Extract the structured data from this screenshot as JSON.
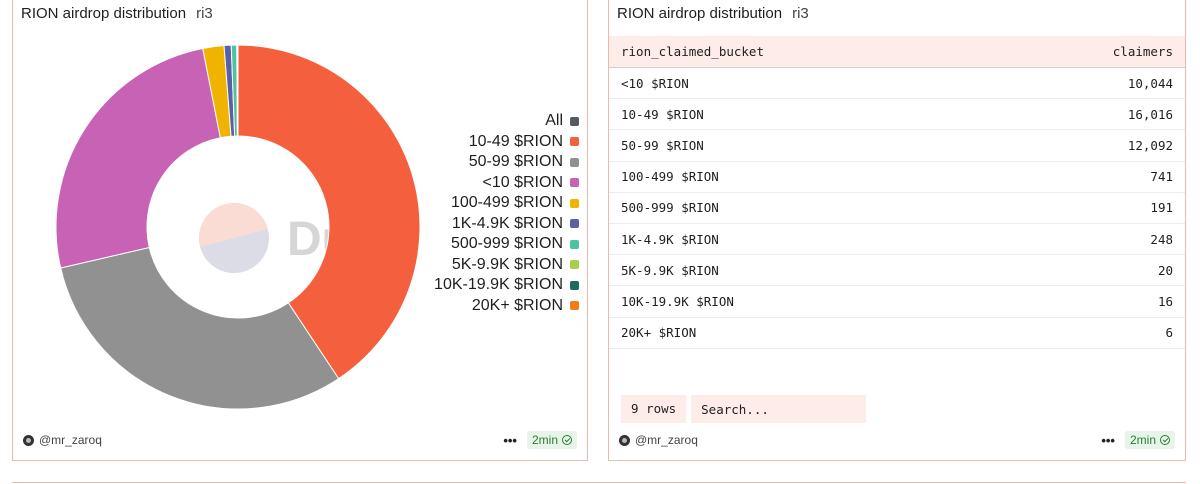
{
  "left_panel": {
    "title": "RION airdrop distribution",
    "subtitle": "ri3",
    "user": "@mr_zaroq",
    "refresh": "2min",
    "watermark": "Dune"
  },
  "right_panel": {
    "title": "RION airdrop distribution",
    "subtitle": "ri3",
    "user": "@mr_zaroq",
    "refresh": "2min",
    "columns": [
      "rion_claimed_bucket",
      "claimers"
    ],
    "rows": [
      {
        "bucket": "<10 $RION",
        "claimers": "10,044"
      },
      {
        "bucket": "10-49 $RION",
        "claimers": "16,016"
      },
      {
        "bucket": "50-99 $RION",
        "claimers": "12,092"
      },
      {
        "bucket": "100-499 $RION",
        "claimers": "741"
      },
      {
        "bucket": "500-999 $RION",
        "claimers": "191"
      },
      {
        "bucket": "1K-4.9K $RION",
        "claimers": "248"
      },
      {
        "bucket": "5K-9.9K $RION",
        "claimers": "20"
      },
      {
        "bucket": "10K-19.9K $RION",
        "claimers": "16"
      },
      {
        "bucket": "20K+ $RION",
        "claimers": "6"
      }
    ],
    "row_count": "9 rows",
    "search_placeholder": "Search..."
  },
  "legend": [
    {
      "label": "All",
      "color": "#555a60"
    },
    {
      "label": "10-49 $RION",
      "color": "#f4603e"
    },
    {
      "label": "50-99 $RION",
      "color": "#919191"
    },
    {
      "label": "<10 $RION",
      "color": "#c862b4"
    },
    {
      "label": "100-499 $RION",
      "color": "#f0b400"
    },
    {
      "label": "1K-4.9K $RION",
      "color": "#5a5fa6"
    },
    {
      "label": "500-999 $RION",
      "color": "#4fc3a1"
    },
    {
      "label": "5K-9.9K $RION",
      "color": "#a5cf4c"
    },
    {
      "label": "10K-19.9K $RION",
      "color": "#1e6b5c"
    },
    {
      "label": "20K+ $RION",
      "color": "#f07d1a"
    }
  ],
  "chart_data": {
    "type": "pie",
    "title": "RION airdrop distribution",
    "donut": true,
    "categories": [
      "10-49 $RION",
      "50-99 $RION",
      "<10 $RION",
      "100-499 $RION",
      "1K-4.9K $RION",
      "500-999 $RION",
      "5K-9.9K $RION",
      "10K-19.9K $RION",
      "20K+ $RION"
    ],
    "values": [
      16016,
      12092,
      10044,
      741,
      248,
      191,
      20,
      16,
      6
    ],
    "colors": [
      "#f4603e",
      "#919191",
      "#c862b4",
      "#f0b400",
      "#5a5fa6",
      "#4fc3a1",
      "#a5cf4c",
      "#1e6b5c",
      "#f07d1a"
    ],
    "legend_position": "right"
  }
}
